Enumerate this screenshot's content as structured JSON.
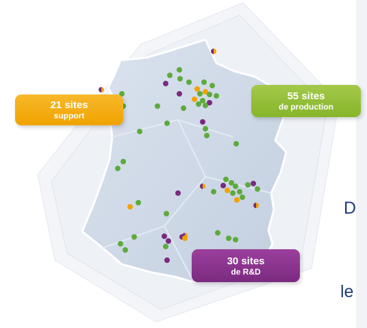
{
  "badges": {
    "support": {
      "count": "21 sites",
      "label": "support",
      "color": "#f0a300"
    },
    "production": {
      "count": "55 sites",
      "label": "de production",
      "color": "#8ab833"
    },
    "rnd": {
      "count": "30 sites",
      "label": "de R&D",
      "color": "#7b2a80"
    }
  },
  "side_text": {
    "line1": "D",
    "line2": "le",
    "color": "#1f3c7a"
  },
  "map": {
    "region": "France",
    "fill": "#cdd8e7",
    "site_colors": {
      "support": "#f0a300",
      "production": "#5cab3c",
      "rnd": "#7b2a80"
    }
  }
}
